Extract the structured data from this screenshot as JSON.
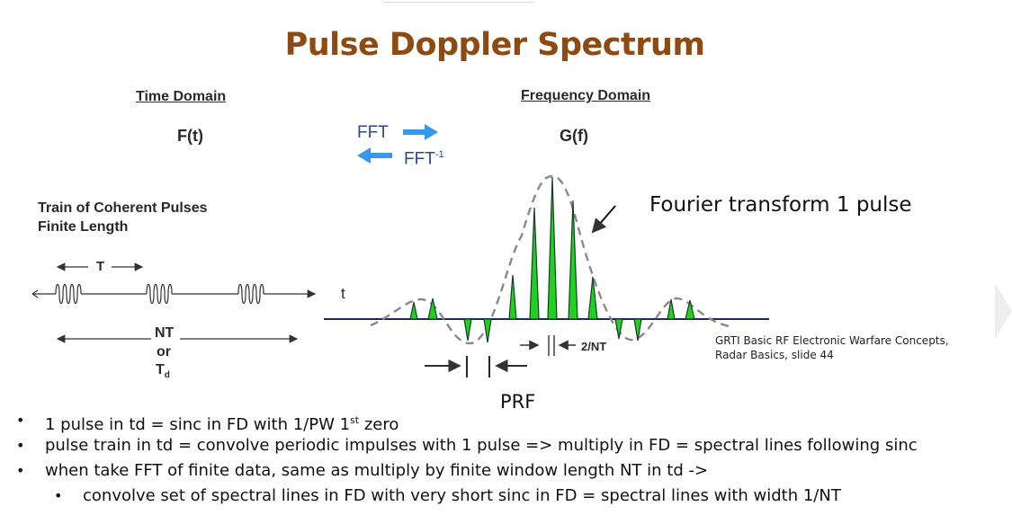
{
  "title": "Pulse Doppler Spectrum",
  "time_domain": {
    "heading": "Time Domain",
    "func": "F(t)",
    "caption_line1": "Train of Coherent Pulses",
    "caption_line2": "Finite Length",
    "period_label": "T",
    "length_label_line1": "NT",
    "length_label_or": "or",
    "length_label_td_main": "T",
    "length_label_td_sub": "d",
    "axis_label": "t"
  },
  "transform": {
    "forward_label": "FFT",
    "inverse_label": "FFT",
    "inverse_sup": "-1"
  },
  "freq_domain": {
    "heading": "Frequency Domain",
    "func": "G(f)",
    "line_width_label": "2/NT",
    "prf_label": "PRF"
  },
  "callout": "Fourier transform 1 pulse",
  "citation_line1": "GRTI Basic RF Electronic Warfare Concepts,",
  "citation_line2": "Radar Basics, slide 44",
  "bullets": [
    {
      "text": "1 pulse in td = sinc in FD with 1/PW 1",
      "sup": "st",
      "tail": " zero"
    },
    {
      "text": "pulse train in td = convolve periodic impulses with 1 pulse => multiply in FD = spectral lines following sinc"
    },
    {
      "text": "when take FFT of finite data, same as multiply by finite window length NT in td ->"
    }
  ],
  "sub_bullets": [
    {
      "text": "convolve set of spectral lines in FD with very short sinc in FD = spectral lines with width 1/NT"
    }
  ],
  "colors": {
    "title": "#8e4a13",
    "spectral_fill": "#1fd21f",
    "envelope": "#8a8a8a",
    "arrow_blue": "#3399ee"
  }
}
